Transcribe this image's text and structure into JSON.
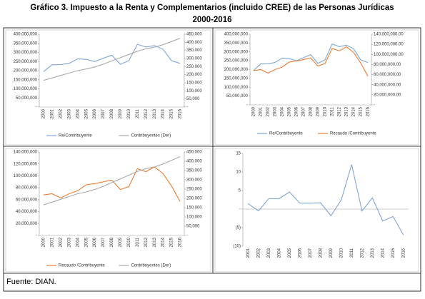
{
  "title_line1": "Gráfico 3. Impuesto a la Renta y Complementarios (incluido CREE) de las  Personas Jurídicas",
  "title_line2": "2000-2016",
  "source": "Fuente: DIAN.",
  "chart_data": [
    {
      "type": "line",
      "legend": "bottom",
      "categories": [
        "2000",
        "2001",
        "2002",
        "2003",
        "2004",
        "2005",
        "2006",
        "2007",
        "2008",
        "2009",
        "2010",
        "2011",
        "2012",
        "2013",
        "2014",
        "2015",
        "2016"
      ],
      "series": [
        {
          "name": "Re/Contribuyente",
          "color": "#7ea6d6",
          "axis": "y",
          "values": [
            195000000,
            232000000,
            233000000,
            240000000,
            265000000,
            262000000,
            250000000,
            268000000,
            285000000,
            235000000,
            255000000,
            345000000,
            330000000,
            338000000,
            318000000,
            255000000,
            240000000
          ]
        },
        {
          "name": "Contribuyentes (Der)",
          "color": "#a9a9a9",
          "axis": "y2",
          "values": [
            165000,
            180000,
            195000,
            210000,
            225000,
            235000,
            248000,
            265000,
            285000,
            305000,
            325000,
            345000,
            360000,
            370000,
            385000,
            405000,
            425000
          ]
        }
      ],
      "ylim": [
        0,
        400000000
      ],
      "yticks": [
        {
          "value": 0,
          "label": "-"
        },
        {
          "value": 50000000,
          "label": "50,000,000"
        },
        {
          "value": 100000000,
          "label": "100,000,000"
        },
        {
          "value": 150000000,
          "label": "150,000,000"
        },
        {
          "value": 200000000,
          "label": "200,000,000"
        },
        {
          "value": 250000000,
          "label": "250,000,000"
        },
        {
          "value": 300000000,
          "label": "300,000,000"
        },
        {
          "value": 350000000,
          "label": "350,000,000"
        },
        {
          "value": 400000000,
          "label": "400,000,000"
        }
      ],
      "y2lim": [
        0,
        450000
      ],
      "y2ticks": [
        {
          "value": 0,
          "label": "-"
        },
        {
          "value": 50000,
          "label": "50,000"
        },
        {
          "value": 100000,
          "label": "100,000"
        },
        {
          "value": 150000,
          "label": "150,000"
        },
        {
          "value": 200000,
          "label": "200,000"
        },
        {
          "value": 250000,
          "label": "250,000"
        },
        {
          "value": 300000,
          "label": "300,000"
        },
        {
          "value": 350000,
          "label": "350,000"
        },
        {
          "value": 400000,
          "label": "400,000"
        },
        {
          "value": 450000,
          "label": "450,000"
        }
      ]
    },
    {
      "type": "line",
      "legend": "bottom",
      "categories": [
        "2000",
        "2001",
        "2002",
        "2003",
        "2004",
        "2005",
        "2006",
        "2007",
        "2008",
        "2009",
        "2010",
        "2011",
        "2012",
        "2013",
        "2014",
        "2015",
        "2016"
      ],
      "series": [
        {
          "name": "Re/Contribuyente",
          "color": "#7ea6d6",
          "axis": "y",
          "values": [
            195000000,
            232000000,
            233000000,
            240000000,
            265000000,
            262000000,
            250000000,
            268000000,
            285000000,
            235000000,
            255000000,
            345000000,
            330000000,
            338000000,
            318000000,
            255000000,
            240000000
          ]
        },
        {
          "name": "Recaudo /Contribuyente",
          "color": "#ed7d31",
          "axis": "y2",
          "values": [
            68000000,
            70000000,
            63000000,
            70000000,
            75000000,
            85000000,
            87000000,
            90000000,
            93000000,
            77000000,
            82000000,
            112000000,
            107000000,
            115000000,
            104000000,
            83000000,
            57000000
          ]
        }
      ],
      "ylim": [
        0,
        400000000
      ],
      "yticks": [
        {
          "value": 0,
          "label": "-"
        },
        {
          "value": 50000000,
          "label": "50,000,000"
        },
        {
          "value": 100000000,
          "label": "100,000,000"
        },
        {
          "value": 150000000,
          "label": "150,000,000"
        },
        {
          "value": 200000000,
          "label": "200,000,000"
        },
        {
          "value": 250000000,
          "label": "250,000,000"
        },
        {
          "value": 300000000,
          "label": "300,000,000"
        },
        {
          "value": 350000000,
          "label": "350,000,000"
        },
        {
          "value": 400000000,
          "label": "400,000,000"
        }
      ],
      "y2lim": [
        0,
        140000000
      ],
      "y2ticks": [
        {
          "value": 0,
          "label": "-"
        },
        {
          "value": 20000000,
          "label": "20,000,000.00"
        },
        {
          "value": 40000000,
          "label": "40,000,000.00"
        },
        {
          "value": 60000000,
          "label": "60,000,000.00"
        },
        {
          "value": 80000000,
          "label": "80,000,000.00"
        },
        {
          "value": 100000000,
          "label": "100,000,000.00"
        },
        {
          "value": 120000000,
          "label": "120,000,000.00"
        },
        {
          "value": 140000000,
          "label": "140,000,000.00"
        }
      ]
    },
    {
      "type": "line",
      "legend": "bottom",
      "categories": [
        "2000",
        "2001",
        "2002",
        "2003",
        "2004",
        "2005",
        "2006",
        "2007",
        "2008",
        "2009",
        "2010",
        "2011",
        "2012",
        "2013",
        "2014",
        "2015",
        "2016"
      ],
      "series": [
        {
          "name": "Recaudo /Contribuyente",
          "color": "#ed7d31",
          "axis": "y",
          "values": [
            68000000,
            70000000,
            63000000,
            70000000,
            75000000,
            85000000,
            87000000,
            90000000,
            93000000,
            77000000,
            82000000,
            112000000,
            107000000,
            115000000,
            104000000,
            83000000,
            57000000
          ]
        },
        {
          "name": "Contribuyentes (Der)",
          "color": "#a9a9a9",
          "axis": "y2",
          "values": [
            165000,
            180000,
            195000,
            210000,
            225000,
            235000,
            248000,
            265000,
            285000,
            305000,
            325000,
            345000,
            360000,
            370000,
            385000,
            405000,
            425000
          ]
        }
      ],
      "ylim": [
        0,
        140000000
      ],
      "yticks": [
        {
          "value": 0,
          "label": "-"
        },
        {
          "value": 20000000,
          "label": "20,000,000"
        },
        {
          "value": 40000000,
          "label": "40,000,000"
        },
        {
          "value": 60000000,
          "label": "60,000,000"
        },
        {
          "value": 80000000,
          "label": "80,000,000"
        },
        {
          "value": 100000000,
          "label": "100,000,000"
        },
        {
          "value": 120000000,
          "label": "120,000,000"
        },
        {
          "value": 140000000,
          "label": "140,000,000"
        }
      ],
      "y2lim": [
        0,
        450000
      ],
      "y2ticks": [
        {
          "value": 0,
          "label": "-"
        },
        {
          "value": 50000,
          "label": "50,000"
        },
        {
          "value": 100000,
          "label": "100,000"
        },
        {
          "value": 150000,
          "label": "150,000"
        },
        {
          "value": 200000,
          "label": "200,000"
        },
        {
          "value": 250000,
          "label": "250,000"
        },
        {
          "value": 300000,
          "label": "300,000"
        },
        {
          "value": 350000,
          "label": "350,000"
        },
        {
          "value": 400000,
          "label": "400,000"
        },
        {
          "value": 450000,
          "label": "450,000"
        }
      ]
    },
    {
      "type": "line",
      "categories": [
        "2001",
        "2002",
        "2003",
        "2004",
        "2005",
        "2006",
        "2007",
        "2008",
        "2009",
        "2010",
        "2011",
        "2012",
        "2013",
        "2014",
        "2015",
        "2016"
      ],
      "series": [
        {
          "color": "#7ea6d6",
          "axis": "y",
          "values": [
            1.5,
            -0.5,
            2.8,
            2.8,
            4.6,
            1.6,
            1.6,
            1.7,
            -1.8,
            2.5,
            12,
            -0.5,
            3.0,
            -3.2,
            -2.0,
            -7
          ]
        }
      ],
      "ylim": [
        -10,
        15
      ],
      "yticks": [
        {
          "value": -10,
          "label": "(10)"
        },
        {
          "value": -5,
          "label": "(5)"
        },
        {
          "value": 0,
          "label": "-"
        },
        5,
        10,
        15
      ]
    }
  ]
}
